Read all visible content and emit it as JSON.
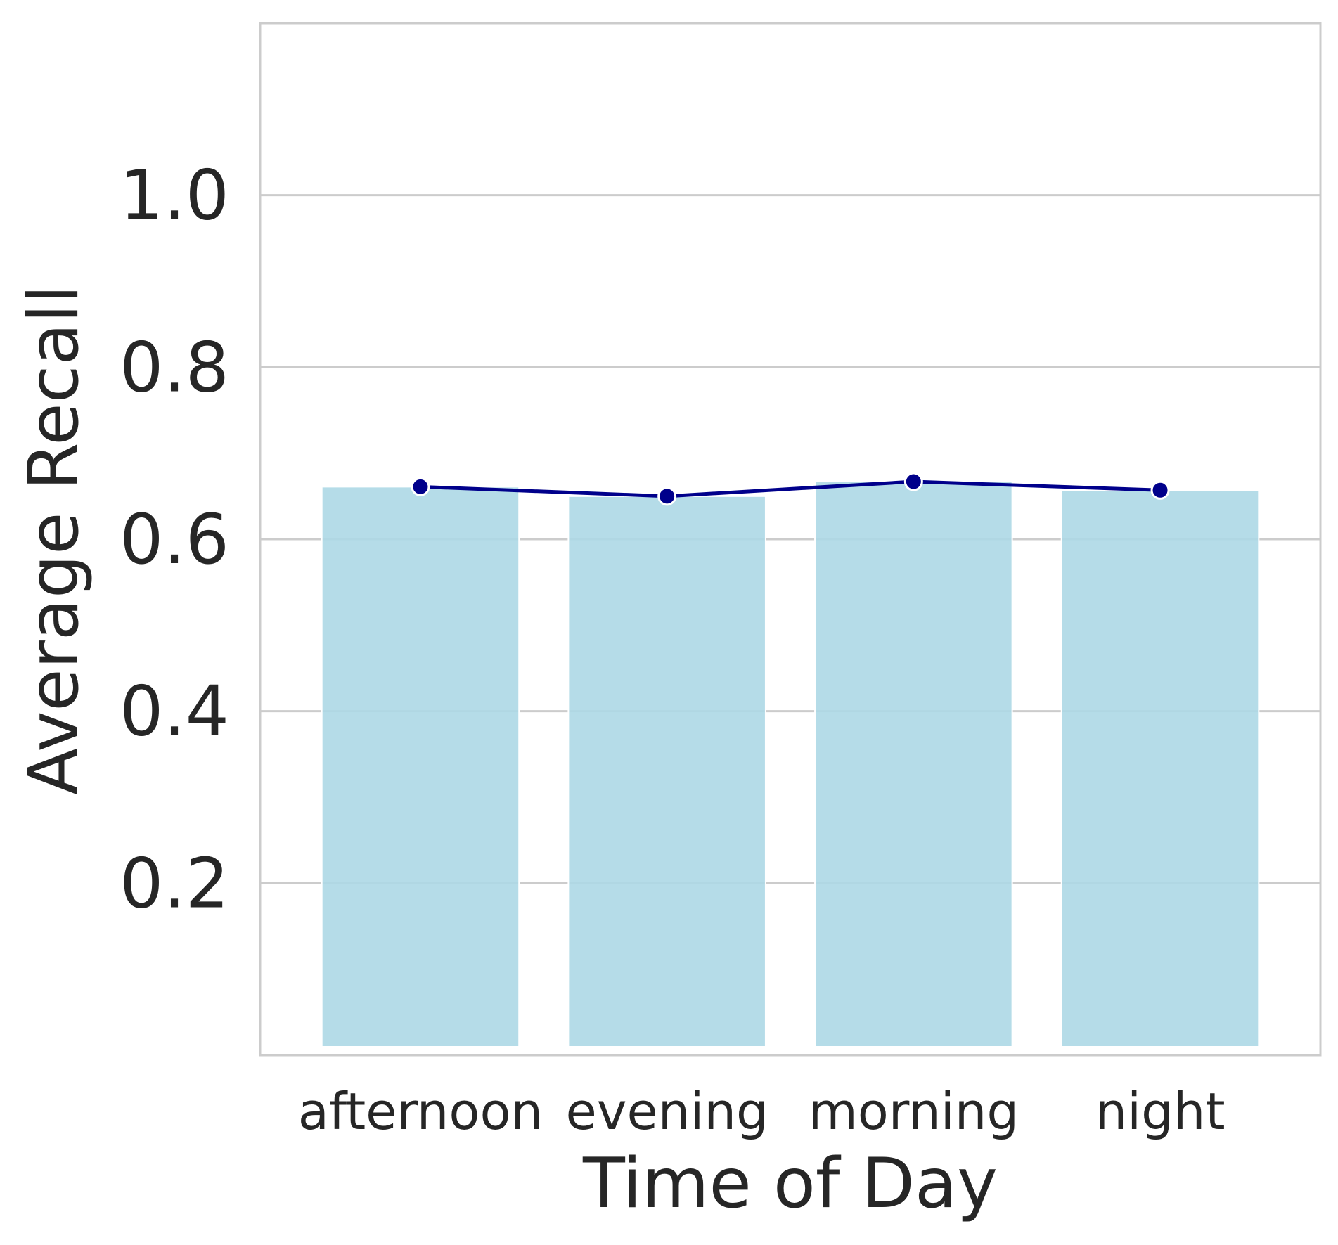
{
  "chart_data": {
    "type": "bar",
    "title": "",
    "xlabel": "Time of Day",
    "ylabel": "Average Recall",
    "categories": [
      "afternoon",
      "evening",
      "morning",
      "night"
    ],
    "series": [
      {
        "kind": "bar",
        "values": [
          0.661,
          0.65,
          0.667,
          0.657
        ],
        "color": "#add8e6"
      },
      {
        "kind": "line",
        "values": [
          0.661,
          0.65,
          0.667,
          0.657
        ],
        "color": "#00008b",
        "markers": true
      }
    ],
    "ylim": [
      0,
      1.2
    ],
    "yticks": [
      0.2,
      0.4,
      0.6,
      0.8,
      1.0
    ],
    "ytick_labels": [
      "0.2",
      "0.4",
      "0.6",
      "0.8",
      "1.0"
    ],
    "grid": "horizontal",
    "legend": "none"
  }
}
